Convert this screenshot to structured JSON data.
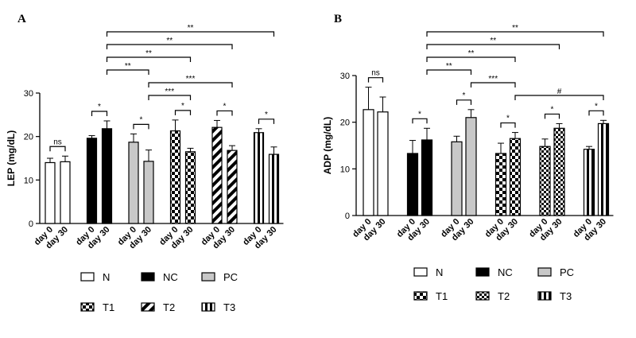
{
  "chart_data": [
    {
      "panel": "A",
      "type": "bar",
      "ylabel": "LEP (mg/dL)",
      "ylim": [
        0,
        30
      ],
      "yticks": [
        0,
        10,
        20,
        30
      ],
      "groups": [
        {
          "name": "N",
          "pattern": "white",
          "values": [
            14.0,
            14.2
          ],
          "errors": [
            1.0,
            1.3
          ]
        },
        {
          "name": "NC",
          "pattern": "black",
          "values": [
            19.6,
            21.8
          ],
          "errors": [
            0.6,
            1.8
          ]
        },
        {
          "name": "PC",
          "pattern": "grey",
          "values": [
            18.7,
            14.3
          ],
          "errors": [
            1.9,
            2.6
          ]
        },
        {
          "name": "T1",
          "pattern": "checker",
          "values": [
            21.3,
            16.5
          ],
          "errors": [
            2.5,
            0.8
          ]
        },
        {
          "name": "T2",
          "pattern": "diagonal",
          "values": [
            22.1,
            16.8
          ],
          "errors": [
            1.6,
            1.1
          ]
        },
        {
          "name": "T3",
          "pattern": "vertical",
          "values": [
            20.9,
            15.9
          ],
          "errors": [
            0.9,
            1.7
          ]
        }
      ],
      "categories": [
        "day 0",
        "day 30"
      ],
      "pair_significance": [
        "ns",
        "*",
        "*",
        "*",
        "*",
        "*"
      ],
      "brackets": [
        {
          "from": [
            1,
            1
          ],
          "to": [
            5,
            1
          ],
          "label": "**"
        },
        {
          "from": [
            1,
            1
          ],
          "to": [
            4,
            1
          ],
          "label": "**"
        },
        {
          "from": [
            1,
            1
          ],
          "to": [
            3,
            1
          ],
          "label": "**"
        },
        {
          "from": [
            1,
            1
          ],
          "to": [
            2,
            1
          ],
          "label": "**"
        },
        {
          "from": [
            2,
            1
          ],
          "to": [
            4,
            1
          ],
          "label": "***"
        },
        {
          "from": [
            2,
            1
          ],
          "to": [
            3,
            1
          ],
          "label": "***"
        }
      ]
    },
    {
      "panel": "B",
      "type": "bar",
      "ylabel": "ADP (mg/dL)",
      "ylim": [
        0,
        30
      ],
      "yticks": [
        0,
        10,
        20,
        30
      ],
      "groups": [
        {
          "name": "N",
          "pattern": "white",
          "values": [
            22.7,
            22.2
          ],
          "errors": [
            4.8,
            3.2
          ]
        },
        {
          "name": "NC",
          "pattern": "black",
          "values": [
            13.3,
            16.2
          ],
          "errors": [
            2.8,
            2.5
          ]
        },
        {
          "name": "PC",
          "pattern": "grey",
          "values": [
            15.8,
            21.0
          ],
          "errors": [
            1.2,
            1.7
          ]
        },
        {
          "name": "T1",
          "pattern": "checker",
          "values": [
            13.3,
            16.5
          ],
          "errors": [
            2.2,
            1.3
          ]
        },
        {
          "name": "T2",
          "pattern": "checker2",
          "values": [
            14.8,
            18.7
          ],
          "errors": [
            1.6,
            1.0
          ]
        },
        {
          "name": "T3",
          "pattern": "vertical",
          "values": [
            14.2,
            19.7
          ],
          "errors": [
            0.6,
            0.7
          ]
        }
      ],
      "categories": [
        "day 0",
        "day 30"
      ],
      "pair_significance": [
        "ns",
        "*",
        "*",
        "*",
        "*",
        "*"
      ],
      "brackets": [
        {
          "from": [
            1,
            1
          ],
          "to": [
            5,
            1
          ],
          "label": "**"
        },
        {
          "from": [
            1,
            1
          ],
          "to": [
            4,
            1
          ],
          "label": "**"
        },
        {
          "from": [
            1,
            1
          ],
          "to": [
            3,
            1
          ],
          "label": "**"
        },
        {
          "from": [
            1,
            1
          ],
          "to": [
            2,
            1
          ],
          "label": "**"
        },
        {
          "from": [
            2,
            1
          ],
          "to": [
            3,
            1
          ],
          "label": "***"
        },
        {
          "from": [
            3,
            1
          ],
          "to": [
            5,
            1
          ],
          "label": "#"
        }
      ]
    }
  ]
}
